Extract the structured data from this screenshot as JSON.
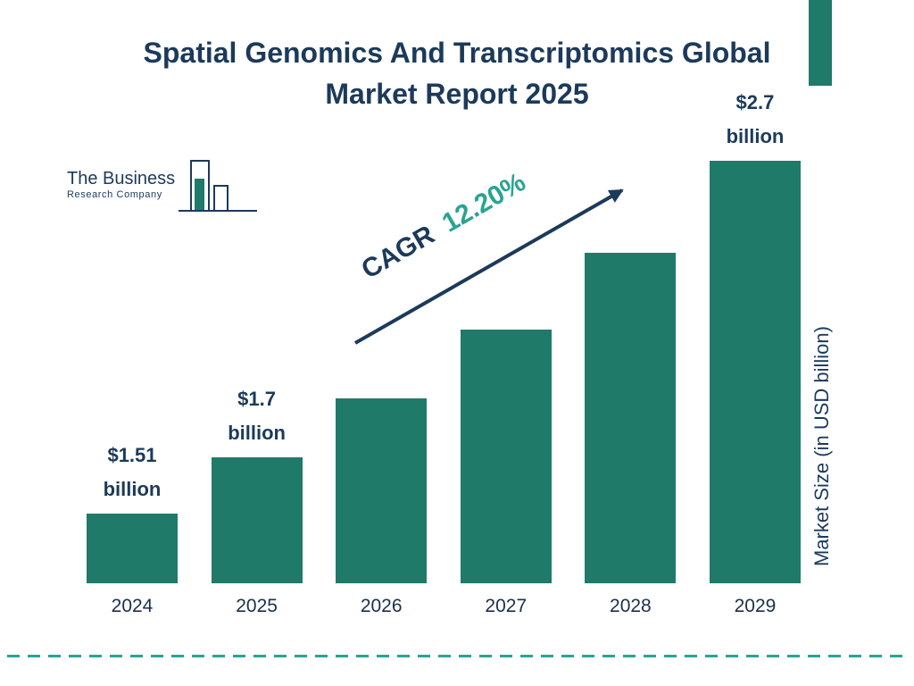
{
  "title": {
    "line1": "Spatial Genomics And Transcriptomics Global",
    "line2": "Market Report 2025"
  },
  "logo": {
    "name_line1": "The Business",
    "name_line2": "Research Company"
  },
  "annotation": {
    "cagr_label": "CAGR",
    "cagr_value": "12.20%"
  },
  "right_axis_label": "Market Size (in USD billion)",
  "colors": {
    "navy": "#1c3a5a",
    "teal": "#1f7a6a",
    "accent_teal": "#2aa394"
  },
  "chart_data": {
    "type": "bar",
    "title": "Spatial Genomics And Transcriptomics Global Market Report 2025",
    "categories": [
      "2024",
      "2025",
      "2026",
      "2027",
      "2028",
      "2029"
    ],
    "values": [
      1.51,
      1.7,
      1.9,
      2.13,
      2.39,
      2.7
    ],
    "value_labels": [
      "$1.51 billion",
      "$1.7 billion",
      "",
      "",
      "",
      "$2.7 billion"
    ],
    "unit": "USD billion",
    "ylabel": "Market Size (in USD billion)",
    "cagr": "12.20%",
    "bar_color": "#1f7a6a",
    "grid": false,
    "legend": false
  }
}
